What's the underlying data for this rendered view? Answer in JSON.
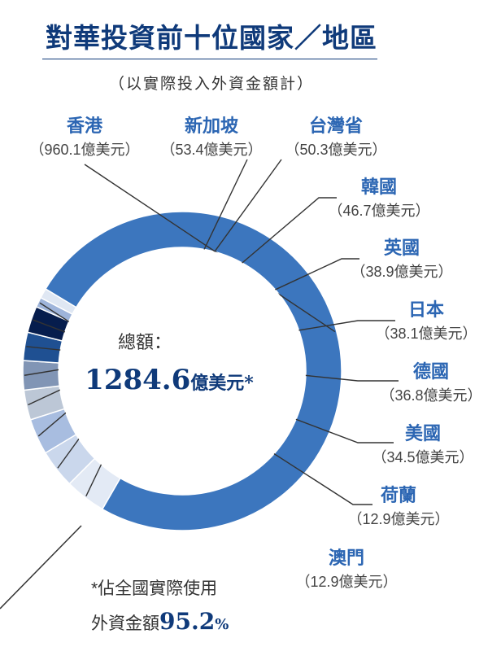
{
  "chart_data": {
    "type": "pie",
    "title": "對華投資前十位國家／地區",
    "subtitle": "（以實際投入外資金額計）",
    "unit": "億美元",
    "categories": [
      "香港",
      "新加坡",
      "台灣省",
      "韓國",
      "英國",
      "日本",
      "德國",
      "美國",
      "荷蘭",
      "澳門"
    ],
    "values": [
      960.1,
      53.4,
      50.3,
      46.7,
      38.9,
      38.1,
      36.8,
      34.5,
      12.9,
      12.9
    ],
    "value_labels": [
      "（960.1億美元）",
      "（53.4億美元）",
      "（50.3億美元）",
      "（46.7億美元）",
      "（38.9億美元）",
      "（38.1億美元）",
      "（36.8億美元）",
      "（34.5億美元）",
      "（12.9億美元）",
      "（12.9億美元）"
    ],
    "colors": [
      "#3c76be",
      "#e3eaf5",
      "#cad7ec",
      "#a8bde0",
      "#bcc7d6",
      "#8195b5",
      "#1f5092",
      "#061d4d",
      "#9eb4da",
      "#dfe7f3"
    ],
    "center_label": "總額：",
    "center_total": "1284.6",
    "center_unit": "億美元*"
  },
  "footnote": {
    "line1": "*佔全國實際使用",
    "line2_prefix": "外資金額",
    "percent": "95.2",
    "percent_sign": "%"
  }
}
